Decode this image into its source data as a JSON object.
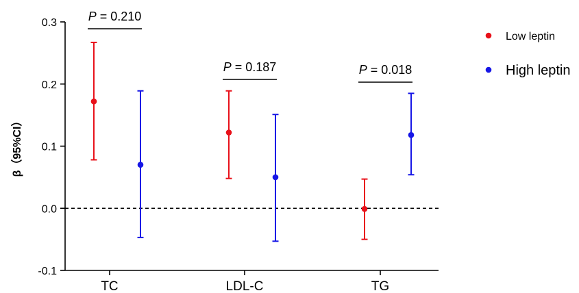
{
  "chart_data": {
    "type": "scatter",
    "title": "",
    "xlabel": "",
    "ylabel": "β（95%CI）",
    "ylim": [
      -0.1,
      0.3
    ],
    "yticks": [
      "-0.1",
      "0.0",
      "0.1",
      "0.2",
      "0.3"
    ],
    "categories": [
      "TC",
      "LDL-C",
      "TG"
    ],
    "reference_line": 0.0,
    "legend_position": "top-right",
    "series": [
      {
        "name": "Low leptin",
        "color": "#e8111a",
        "values": [
          0.172,
          0.122,
          -0.001
        ],
        "lower": [
          0.078,
          0.048,
          -0.05
        ],
        "upper": [
          0.267,
          0.189,
          0.047
        ]
      },
      {
        "name": "High leptin",
        "color": "#1616e6",
        "values": [
          0.07,
          0.05,
          0.118
        ],
        "lower": [
          -0.047,
          -0.053,
          0.054
        ],
        "upper": [
          0.189,
          0.151,
          0.185
        ]
      }
    ],
    "comparisons": [
      {
        "category": "TC",
        "p_prefix": "P",
        "p_text": " = 0.210"
      },
      {
        "category": "LDL-C",
        "p_prefix": "P",
        "p_text": " = 0.187"
      },
      {
        "category": "TG",
        "p_prefix": "P",
        "p_text": " = 0.018"
      }
    ]
  }
}
